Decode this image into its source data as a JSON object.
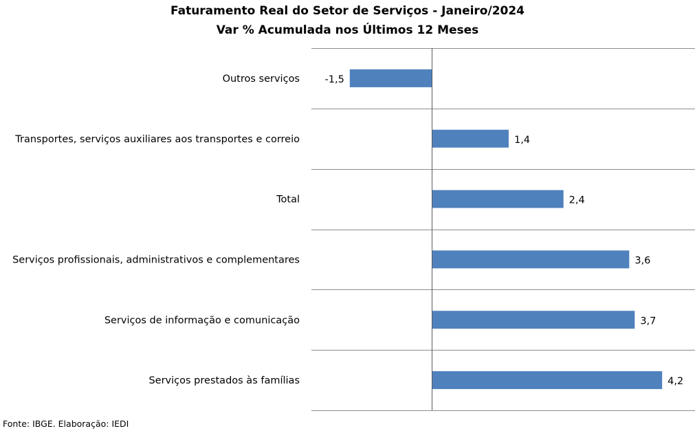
{
  "chart_data": {
    "type": "bar",
    "orientation": "horizontal",
    "title": "Faturamento Real do Setor de Serviços - Janeiro/2024",
    "subtitle": "Var % Acumulada nos Últimos 12 Meses",
    "categories": [
      "Outros serviços",
      "Transportes, serviços auxiliares aos transportes e correio",
      "Total",
      "Serviços profissionais, administrativos e complementares",
      "Serviços de informação e comunicação",
      "Serviços prestados às famílias"
    ],
    "values": [
      -1.5,
      1.4,
      2.4,
      3.6,
      3.7,
      4.2
    ],
    "value_labels": [
      "-1,5",
      "1,4",
      "2,4",
      "3,6",
      "3,7",
      "4,2"
    ],
    "xlim": [
      -2.2,
      4.8
    ],
    "gridlines": "horizontal separators between categories",
    "bar_color": "#4f81bd"
  },
  "source": "Fonte: IBGE. Elaboração: IEDI"
}
